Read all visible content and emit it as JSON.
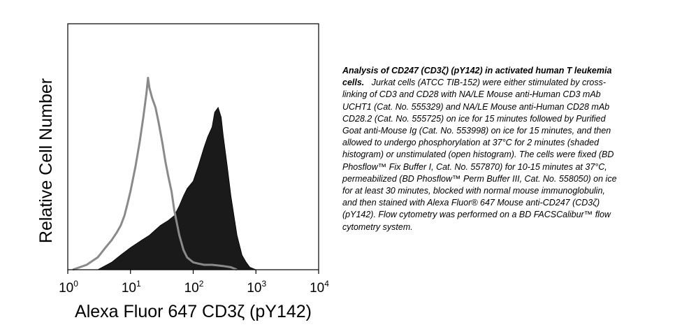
{
  "chart_data": {
    "type": "area",
    "xlabel": "Alexa Fluor 647 CD3ζ (pY142)",
    "ylabel": "Relative Cell Number",
    "x_scale": "log",
    "xlim": [
      1,
      10000
    ],
    "ylim": [
      0,
      1.0
    ],
    "x_ticks": [
      {
        "base": "10",
        "exp": "0",
        "value": 1
      },
      {
        "base": "10",
        "exp": "1",
        "value": 10
      },
      {
        "base": "10",
        "exp": "2",
        "value": 100
      },
      {
        "base": "10",
        "exp": "3",
        "value": 1000
      },
      {
        "base": "10",
        "exp": "4",
        "value": 10000
      }
    ],
    "grid": false,
    "series": [
      {
        "style": "open",
        "color": "#8a8a8a",
        "x": [
          1.2,
          2,
          3,
          4,
          5,
          6,
          7,
          8,
          9,
          10,
          12,
          14,
          16,
          18,
          19,
          20,
          22,
          25,
          28,
          32,
          36,
          40,
          45,
          50,
          60,
          70,
          80,
          100,
          120,
          150,
          200,
          300,
          400,
          500
        ],
        "y": [
          0.0,
          0.02,
          0.05,
          0.09,
          0.12,
          0.15,
          0.18,
          0.22,
          0.27,
          0.32,
          0.42,
          0.52,
          0.62,
          0.72,
          0.78,
          0.74,
          0.7,
          0.66,
          0.6,
          0.52,
          0.44,
          0.38,
          0.32,
          0.24,
          0.14,
          0.08,
          0.05,
          0.03,
          0.025,
          0.02,
          0.02,
          0.015,
          0.01,
          0.0
        ]
      },
      {
        "style": "shaded",
        "color": "#1a1a1a",
        "x": [
          3,
          5,
          7,
          10,
          15,
          20,
          30,
          40,
          50,
          60,
          70,
          80,
          100,
          120,
          150,
          170,
          200,
          220,
          250,
          280,
          300,
          350,
          400,
          500,
          600,
          700,
          800,
          1000
        ],
        "y": [
          0.0,
          0.03,
          0.06,
          0.09,
          0.12,
          0.14,
          0.18,
          0.2,
          0.22,
          0.26,
          0.3,
          0.33,
          0.36,
          0.42,
          0.5,
          0.54,
          0.58,
          0.64,
          0.66,
          0.62,
          0.55,
          0.42,
          0.3,
          0.14,
          0.06,
          0.03,
          0.01,
          0.0
        ]
      }
    ]
  },
  "caption": {
    "lead": "Analysis of CD247 (CD3ζ) (pY142) in activated human T leukemia cells.",
    "body": "Jurkat cells (ATCC TIB-152) were either stimulated by cross-linking of CD3 and CD28 with NA/LE Mouse anti-Human CD3 mAb UCHT1 (Cat. No. 555329) and NA/LE Mouse anti-Human CD28 mAb CD28.2 (Cat. No. 555725) on ice for 15 minutes followed by Purified Goat anti-Mouse Ig (Cat. No. 553998) on ice for 15 minutes, and then allowed to undergo phosphorylation at 37°C for 2 minutes (shaded histogram) or unstimulated (open histogram). The cells were fixed (BD Phosflow™ Fix Buffer I, Cat. No. 557870) for 10-15 minutes at 37°C, permeabilized (BD Phosflow™ Perm Buffer III, Cat. No. 558050) on ice for at least 30 minutes, blocked with normal mouse immunoglobulin, and then stained with Alexa Fluor® 647 Mouse anti-CD247 (CD3ζ) (pY142). Flow cytometry was performed on a BD FACSCalibur™ flow cytometry system."
  }
}
